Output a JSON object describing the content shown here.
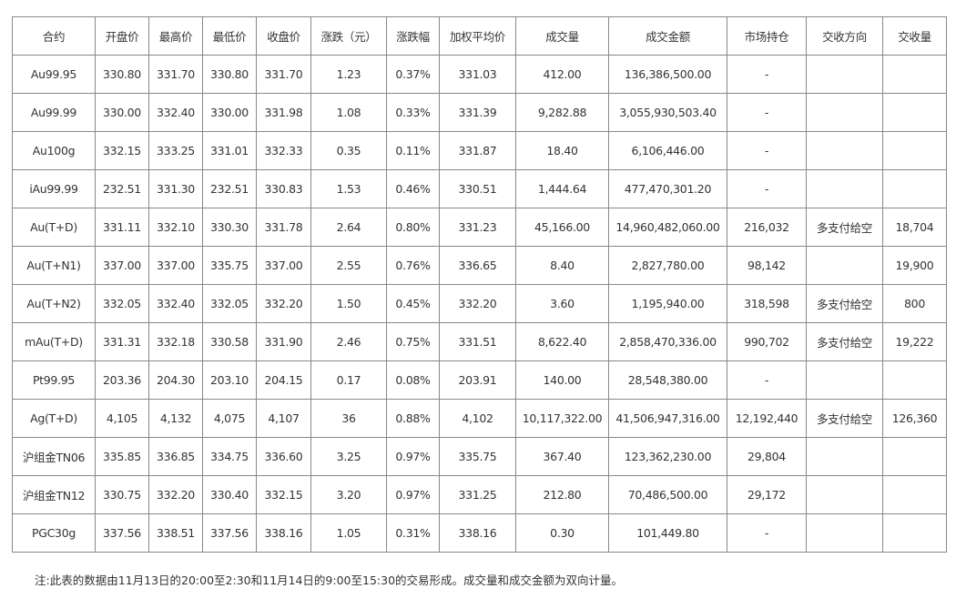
{
  "table": {
    "header": [
      "合约",
      "开盘价",
      "最高价",
      "最低价",
      "收盘价",
      "涨跌（元）",
      "涨跌幅",
      "加权平均价",
      "成交量",
      "成交金额",
      "市场持仓",
      "交收方向",
      "交收量"
    ],
    "rows": [
      [
        "Au99.95",
        "330.80",
        "331.70",
        "330.80",
        "331.70",
        "1.23",
        "0.37%",
        "331.03",
        "412.00",
        "136,386,500.00",
        "-",
        null,
        null
      ],
      [
        "Au99.99",
        "330.00",
        "332.40",
        "330.00",
        "331.98",
        "1.08",
        "0.33%",
        "331.39",
        "9,282.88",
        "3,055,930,503.40",
        "-",
        null,
        null
      ],
      [
        "Au100g",
        "332.15",
        "333.25",
        "331.01",
        "332.33",
        "0.35",
        "0.11%",
        "331.87",
        "18.40",
        "6,106,446.00",
        "-",
        null,
        null
      ],
      [
        "iAu99.99",
        "232.51",
        "331.30",
        "232.51",
        "330.83",
        "1.53",
        "0.46%",
        "330.51",
        "1,444.64",
        "477,470,301.20",
        "-",
        null,
        null
      ],
      [
        "Au(T+D)",
        "331.11",
        "332.10",
        "330.30",
        "331.78",
        "2.64",
        "0.80%",
        "331.23",
        "45,166.00",
        "14,960,482,060.00",
        "216,032",
        "多支付给空",
        "18,704"
      ],
      [
        "Au(T+N1)",
        "337.00",
        "337.00",
        "335.75",
        "337.00",
        "2.55",
        "0.76%",
        "336.65",
        "8.40",
        "2,827,780.00",
        "98,142",
        null,
        "19,900"
      ],
      [
        "Au(T+N2)",
        "332.05",
        "332.40",
        "332.05",
        "332.20",
        "1.50",
        "0.45%",
        "332.20",
        "3.60",
        "1,195,940.00",
        "318,598",
        "多支付给空",
        "800"
      ],
      [
        "mAu(T+D)",
        "331.31",
        "332.18",
        "330.58",
        "331.90",
        "2.46",
        "0.75%",
        "331.51",
        "8,622.40",
        "2,858,470,336.00",
        "990,702",
        "多支付给空",
        "19,222"
      ],
      [
        "Pt99.95",
        "203.36",
        "204.30",
        "203.10",
        "204.15",
        "0.17",
        "0.08%",
        "203.91",
        "140.00",
        "28,548,380.00",
        "-",
        null,
        null
      ],
      [
        "Ag(T+D)",
        "4,105",
        "4,132",
        "4,075",
        "4,107",
        "36",
        "0.88%",
        "4,102",
        "10,117,322.00",
        "41,506,947,316.00",
        "12,192,440",
        "多支付给空",
        "126,360"
      ],
      [
        "沪组金TN06",
        "335.85",
        "336.85",
        "334.75",
        "336.60",
        "3.25",
        "0.97%",
        "335.75",
        "367.40",
        "123,362,230.00",
        "29,804",
        null,
        null
      ],
      [
        "沪组金TN12",
        "330.75",
        "332.20",
        "330.40",
        "332.15",
        "3.20",
        "0.97%",
        "331.25",
        "212.80",
        "70,486,500.00",
        "29,172",
        null,
        null
      ],
      [
        "PGC30g",
        "337.56",
        "338.51",
        "337.56",
        "338.16",
        "1.05",
        "0.31%",
        "338.16",
        "0.30",
        "101,449.80",
        "-",
        null,
        null
      ]
    ]
  },
  "note": "注:此表的数据由11月13日的20:00至2:30和11月14日的9:00至15:30的交易形成。成交量和成交金额为双向计量。"
}
